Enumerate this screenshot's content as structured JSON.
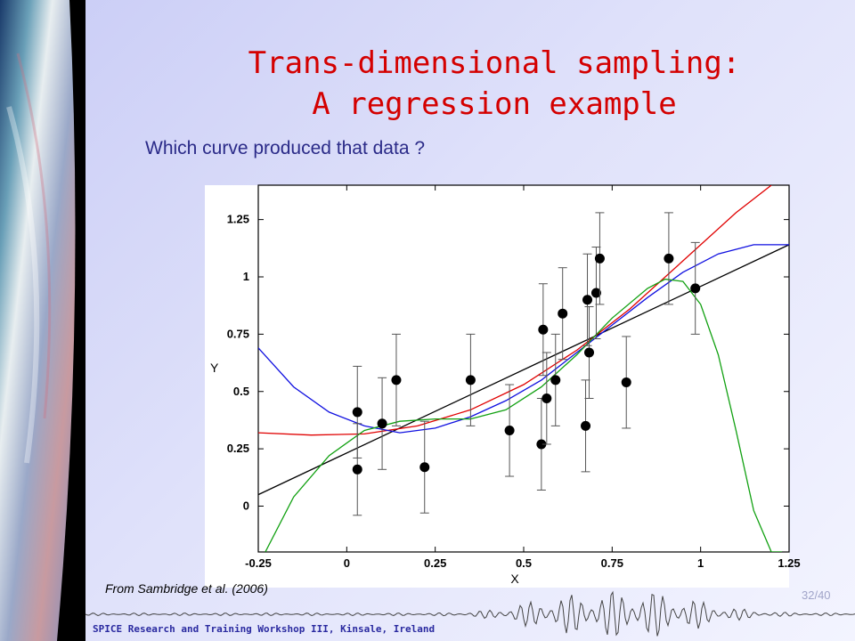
{
  "title_line1": "Trans-dimensional sampling:",
  "title_line2": "A regression example",
  "question": "Which curve produced that data ?",
  "caption": "From Sambridge et al. (2006)",
  "page_number": "32/40",
  "footer": "SPICE Research and Training Workshop III, Kinsale, Ireland",
  "chart_data": {
    "type": "scatter",
    "xlabel": "X",
    "ylabel": "Y",
    "xlim": [
      -0.25,
      1.25
    ],
    "ylim": [
      -0.2,
      1.4
    ],
    "xticks": [
      -0.25,
      0,
      0.25,
      0.5,
      0.75,
      1,
      1.25
    ],
    "xtick_labels": [
      "-0.25",
      "0",
      "0.25",
      "0.5",
      "0.75",
      "1",
      "1.25"
    ],
    "yticks": [
      0,
      0.25,
      0.5,
      0.75,
      1,
      1.25
    ],
    "ytick_labels": [
      "0",
      "0.25",
      "0.5",
      "0.75",
      "1",
      "1.25"
    ],
    "points": [
      {
        "x": 0.03,
        "y": 0.41,
        "err": 0.2
      },
      {
        "x": 0.03,
        "y": 0.16,
        "err": 0.2
      },
      {
        "x": 0.1,
        "y": 0.36,
        "err": 0.2
      },
      {
        "x": 0.14,
        "y": 0.55,
        "err": 0.2
      },
      {
        "x": 0.22,
        "y": 0.17,
        "err": 0.2
      },
      {
        "x": 0.35,
        "y": 0.55,
        "err": 0.2
      },
      {
        "x": 0.46,
        "y": 0.33,
        "err": 0.2
      },
      {
        "x": 0.55,
        "y": 0.27,
        "err": 0.2
      },
      {
        "x": 0.555,
        "y": 0.77,
        "err": 0.2
      },
      {
        "x": 0.565,
        "y": 0.47,
        "err": 0.2
      },
      {
        "x": 0.59,
        "y": 0.55,
        "err": 0.2
      },
      {
        "x": 0.61,
        "y": 0.84,
        "err": 0.2
      },
      {
        "x": 0.675,
        "y": 0.35,
        "err": 0.2
      },
      {
        "x": 0.68,
        "y": 0.9,
        "err": 0.2
      },
      {
        "x": 0.685,
        "y": 0.67,
        "err": 0.2
      },
      {
        "x": 0.705,
        "y": 0.93,
        "err": 0.2
      },
      {
        "x": 0.715,
        "y": 1.08,
        "err": 0.2
      },
      {
        "x": 0.79,
        "y": 0.54,
        "err": 0.2
      },
      {
        "x": 0.91,
        "y": 1.08,
        "err": 0.2
      },
      {
        "x": 0.985,
        "y": 0.95,
        "err": 0.2
      }
    ],
    "curves": [
      {
        "color": "#000000",
        "x": [
          -0.25,
          1.25
        ],
        "y": [
          0.05,
          1.14
        ]
      },
      {
        "color": "#e00000",
        "x": [
          -0.25,
          -0.1,
          0.05,
          0.2,
          0.35,
          0.5,
          0.65,
          0.8,
          0.95,
          1.1,
          1.2
        ],
        "y": [
          0.32,
          0.31,
          0.315,
          0.35,
          0.42,
          0.53,
          0.68,
          0.86,
          1.07,
          1.28,
          1.4
        ]
      },
      {
        "color": "#1010e0",
        "x": [
          -0.25,
          -0.15,
          -0.05,
          0.05,
          0.15,
          0.25,
          0.35,
          0.45,
          0.55,
          0.65,
          0.75,
          0.85,
          0.95,
          1.05,
          1.15,
          1.25
        ],
        "y": [
          0.69,
          0.52,
          0.41,
          0.35,
          0.32,
          0.34,
          0.39,
          0.46,
          0.55,
          0.67,
          0.79,
          0.91,
          1.02,
          1.1,
          1.14,
          1.14
        ]
      },
      {
        "color": "#10a010",
        "x": [
          -0.23,
          -0.15,
          -0.05,
          0.05,
          0.15,
          0.25,
          0.35,
          0.45,
          0.55,
          0.65,
          0.75,
          0.85,
          0.9,
          0.95,
          1.0,
          1.05,
          1.1,
          1.15,
          1.2,
          1.23
        ],
        "y": [
          -0.2,
          0.04,
          0.22,
          0.33,
          0.37,
          0.38,
          0.38,
          0.42,
          0.52,
          0.66,
          0.82,
          0.95,
          0.99,
          0.98,
          0.88,
          0.66,
          0.33,
          -0.02,
          -0.2,
          -0.2
        ]
      }
    ]
  }
}
